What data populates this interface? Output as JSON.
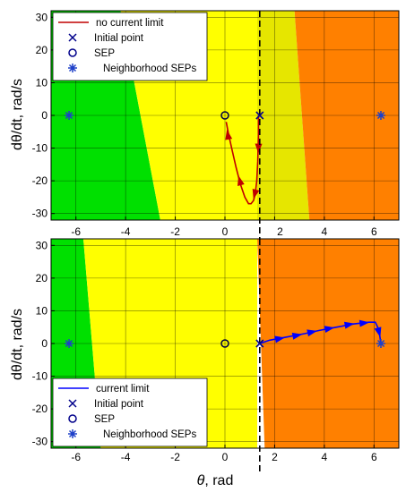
{
  "colors": {
    "stable_green": "#00e000",
    "bright_yellow": "#ffff00",
    "mid_yellow": "#e6e600",
    "unstable_orange": "#ff8000",
    "trajectory_no_limit": "#c00000",
    "trajectory_limit": "#0000ff",
    "markers": "#00008b",
    "grid": "#000000",
    "dashed_line": "#000000"
  },
  "shared": {
    "ylabel": "dθ/dt, rad/s",
    "xlabel_symbol": "θ",
    "xlabel_unit": ", rad",
    "ylabel_top": "dθ/dt, rad/s",
    "ylabel_bottom": "dθ/dt, rad/s"
  },
  "chart_data": [
    {
      "type": "line",
      "panel": "top",
      "xlim": [
        -7,
        7
      ],
      "ylim": [
        -32,
        32
      ],
      "xticks": [
        -6,
        -4,
        -2,
        0,
        2,
        4,
        6
      ],
      "yticks": [
        -30,
        -20,
        -10,
        0,
        10,
        20,
        30
      ],
      "xtick_labels_shown": false,
      "grid": true,
      "legend_position": "top-left",
      "legend": [
        {
          "label": "no current limit",
          "kind": "line"
        },
        {
          "label": "Initial point",
          "kind": "x"
        },
        {
          "label": "SEP",
          "kind": "circle"
        },
        {
          "label": "Neighborhood SEPs",
          "kind": "star"
        }
      ],
      "regions": [
        {
          "color": "stable_green",
          "polygon": [
            [
              -7,
              32
            ],
            [
              -4.2,
              32
            ],
            [
              -2.6,
              -32
            ],
            [
              -7,
              -32
            ]
          ]
        },
        {
          "color": "bright_yellow",
          "polygon": [
            [
              -4.2,
              32
            ],
            [
              1.3,
              32
            ],
            [
              1.3,
              -32
            ],
            [
              -2.6,
              -32
            ]
          ]
        },
        {
          "color": "mid_yellow",
          "polygon": [
            [
              1.3,
              32
            ],
            [
              2.8,
              32
            ],
            [
              3.4,
              -32
            ],
            [
              1.3,
              -32
            ]
          ]
        },
        {
          "color": "unstable_orange",
          "polygon": [
            [
              2.8,
              32
            ],
            [
              7,
              32
            ],
            [
              7,
              -32
            ],
            [
              3.4,
              -32
            ]
          ]
        }
      ],
      "series": [
        {
          "name": "no current limit",
          "color": "trajectory_no_limit",
          "points": [
            [
              1.35,
              0
            ],
            [
              1.35,
              -6
            ],
            [
              1.32,
              -14
            ],
            [
              1.28,
              -20
            ],
            [
              1.22,
              -24
            ],
            [
              1.15,
              -26
            ],
            [
              1.05,
              -27
            ],
            [
              0.95,
              -27
            ],
            [
              0.8,
              -25
            ],
            [
              0.62,
              -21
            ],
            [
              0.45,
              -16
            ],
            [
              0.3,
              -11
            ],
            [
              0.15,
              -6
            ],
            [
              0.05,
              -2
            ]
          ],
          "arrows": [
            [
              1.35,
              -10
            ],
            [
              1.2,
              -24
            ],
            [
              0.6,
              -20
            ],
            [
              0.12,
              -6
            ]
          ]
        }
      ],
      "initial_point": [
        1.4,
        0
      ],
      "sep": [
        0,
        0
      ],
      "neighborhood_seps": [
        [
          -6.28,
          0
        ],
        [
          6.28,
          0
        ]
      ],
      "dashed_vline_x": 1.4
    },
    {
      "type": "line",
      "panel": "bottom",
      "xlim": [
        -7,
        7
      ],
      "ylim": [
        -32,
        32
      ],
      "xticks": [
        -6,
        -4,
        -2,
        0,
        2,
        4,
        6
      ],
      "yticks": [
        -30,
        -20,
        -10,
        0,
        10,
        20,
        30
      ],
      "xtick_labels_shown": true,
      "grid": true,
      "legend_position": "bottom-left",
      "legend": [
        {
          "label": "current limit",
          "kind": "line"
        },
        {
          "label": "Initial point",
          "kind": "x"
        },
        {
          "label": "SEP",
          "kind": "circle"
        },
        {
          "label": "Neighborhood SEPs",
          "kind": "star"
        }
      ],
      "regions": [
        {
          "color": "stable_green",
          "polygon": [
            [
              -7,
              32
            ],
            [
              -5.7,
              32
            ],
            [
              -5,
              -32
            ],
            [
              -7,
              -32
            ]
          ]
        },
        {
          "color": "bright_yellow",
          "polygon": [
            [
              -5.7,
              32
            ],
            [
              1.3,
              32
            ],
            [
              1.3,
              -32
            ],
            [
              -5,
              -32
            ]
          ]
        },
        {
          "color": "unstable_orange",
          "polygon": [
            [
              1.3,
              32
            ],
            [
              7,
              32
            ],
            [
              7,
              -32
            ],
            [
              1.6,
              -32
            ]
          ]
        }
      ],
      "series": [
        {
          "name": "current limit",
          "color": "trajectory_limit",
          "points": [
            [
              1.4,
              0
            ],
            [
              1.8,
              1
            ],
            [
              2.5,
              2
            ],
            [
              3.2,
              3
            ],
            [
              3.8,
              4
            ],
            [
              4.5,
              5
            ],
            [
              5.2,
              6
            ],
            [
              5.8,
              6.5
            ],
            [
              6.05,
              6.5
            ],
            [
              6.15,
              5
            ],
            [
              6.22,
              3
            ],
            [
              6.28,
              0
            ]
          ],
          "arrows": [
            [
              2.2,
              1.5
            ],
            [
              2.9,
              2.5
            ],
            [
              3.5,
              3.5
            ],
            [
              4.2,
              4.6
            ],
            [
              5.0,
              5.8
            ],
            [
              5.6,
              6.3
            ],
            [
              6.2,
              3.5
            ]
          ]
        }
      ],
      "initial_point": [
        1.4,
        0
      ],
      "sep": [
        0,
        0
      ],
      "neighborhood_seps": [
        [
          -6.28,
          0
        ],
        [
          6.28,
          0
        ]
      ],
      "dashed_vline_x": 1.4
    }
  ]
}
